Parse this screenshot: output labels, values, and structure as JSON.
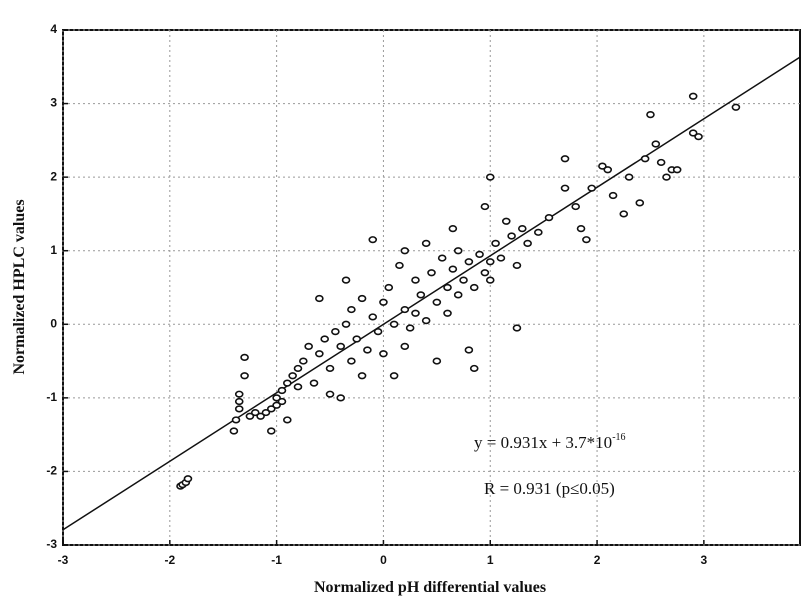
{
  "chart_data": {
    "type": "scatter",
    "x_label": "Normalized pH differential values",
    "y_label": "Normalized HPLC values",
    "annotations": {
      "equation": "y = 0.931x + 3.7*10",
      "equation_exponent": "-16",
      "r_text": "R = 0.931 (p≤0.05)"
    },
    "fit": {
      "slope": 0.931,
      "intercept": 3.7e-16
    },
    "xlim": [
      -3,
      3.9
    ],
    "ylim": [
      -3,
      4
    ],
    "xticks": [
      -3,
      -2,
      -1,
      0,
      1,
      2,
      3
    ],
    "yticks": [
      -3,
      -2,
      -1,
      0,
      1,
      2,
      3,
      4
    ],
    "grid": true,
    "color": "#111111",
    "x": [
      -1.9,
      -1.88,
      -1.85,
      -1.83,
      -1.3,
      -1.3,
      -1.35,
      -1.35,
      -1.35,
      -1.38,
      -1.4,
      -1.25,
      -1.2,
      -1.15,
      -1.1,
      -1.05,
      -1.0,
      -1.05,
      -1.0,
      -0.95,
      -0.9,
      -0.95,
      -0.85,
      -0.8,
      -0.75,
      -0.8,
      -0.7,
      -0.65,
      -0.6,
      -0.55,
      -0.5,
      -0.5,
      -0.45,
      -0.4,
      -0.4,
      -0.35,
      -0.3,
      -0.3,
      -0.25,
      -0.2,
      -0.2,
      -0.15,
      -0.1,
      -0.1,
      -0.05,
      0.0,
      0.0,
      0.05,
      0.1,
      0.1,
      0.15,
      0.2,
      0.2,
      0.25,
      0.3,
      0.3,
      0.35,
      0.4,
      0.45,
      0.5,
      0.5,
      0.55,
      0.6,
      0.6,
      0.65,
      0.7,
      0.7,
      0.75,
      0.8,
      0.8,
      0.85,
      0.9,
      0.95,
      1.0,
      1.0,
      1.05,
      1.1,
      1.15,
      1.2,
      1.25,
      1.25,
      1.3,
      1.35,
      1.45,
      1.55,
      1.7,
      1.7,
      1.8,
      1.85,
      1.9,
      1.95,
      2.05,
      2.1,
      2.15,
      2.25,
      2.3,
      2.4,
      2.45,
      2.5,
      2.55,
      2.6,
      2.65,
      2.7,
      2.75,
      2.9,
      2.9,
      2.95,
      3.3,
      0.85,
      -0.9,
      -0.6,
      0.2,
      0.4,
      -0.35,
      0.65,
      1.0,
      0.95
    ],
    "y": [
      -2.2,
      -2.18,
      -2.15,
      -2.1,
      -0.45,
      -0.7,
      -0.95,
      -1.05,
      -1.15,
      -1.3,
      -1.45,
      -1.25,
      -1.2,
      -1.25,
      -1.2,
      -1.15,
      -1.1,
      -1.45,
      -1.0,
      -0.9,
      -0.8,
      -1.05,
      -0.7,
      -0.6,
      -0.5,
      -0.85,
      -0.3,
      -0.8,
      -0.4,
      -0.2,
      -0.6,
      -0.95,
      -0.1,
      -0.3,
      -1.0,
      0.0,
      -0.5,
      0.2,
      -0.2,
      0.35,
      -0.7,
      -0.35,
      0.1,
      1.15,
      -0.1,
      0.3,
      -0.4,
      0.5,
      0.0,
      -0.7,
      0.8,
      0.2,
      1.0,
      -0.05,
      0.6,
      0.15,
      0.4,
      0.05,
      0.7,
      0.3,
      -0.5,
      0.9,
      0.5,
      0.15,
      0.75,
      0.4,
      1.0,
      0.6,
      0.85,
      -0.35,
      0.5,
      0.95,
      0.7,
      2.0,
      0.85,
      1.1,
      0.9,
      1.4,
      1.2,
      -0.05,
      0.8,
      1.3,
      1.1,
      1.25,
      1.45,
      2.25,
      1.85,
      1.6,
      1.3,
      1.15,
      1.85,
      2.15,
      2.1,
      1.75,
      1.5,
      2.0,
      1.65,
      2.25,
      2.85,
      2.45,
      2.2,
      2.0,
      2.1,
      2.1,
      2.6,
      3.1,
      2.55,
      2.95,
      -0.6,
      -1.3,
      0.35,
      -0.3,
      1.1,
      0.6,
      1.3,
      0.6,
      1.6
    ]
  }
}
